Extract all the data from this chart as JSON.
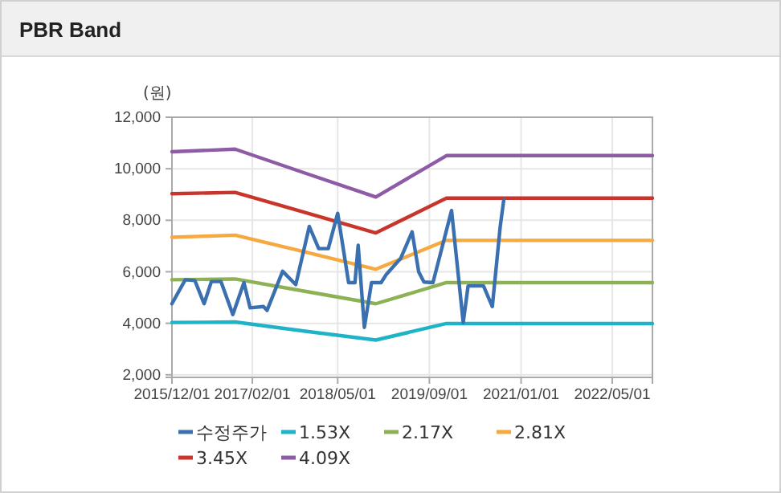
{
  "chart_data": {
    "type": "line",
    "title": "PBR Band",
    "ylabel": "(원)",
    "xlim": [
      "2015-12-01",
      "2022-12-01"
    ],
    "ylim": [
      1900,
      12000
    ],
    "xticks": [
      {
        "value": "2015-12-01",
        "label": "2015/12/01"
      },
      {
        "value": "2017-02-01",
        "label": "2017/02/01"
      },
      {
        "value": "2018-05-01",
        "label": "2018/05/01"
      },
      {
        "value": "2019-09-01",
        "label": "2019/09/01"
      },
      {
        "value": "2021-01-01",
        "label": "2021/01/01"
      },
      {
        "value": "2022-05-01",
        "label": "2022/05/01"
      }
    ],
    "yticks": [
      {
        "value": 2000,
        "label": "2,000"
      },
      {
        "value": 4000,
        "label": "4,000"
      },
      {
        "value": 6000,
        "label": "6,000"
      },
      {
        "value": 8000,
        "label": "8,000"
      },
      {
        "value": 10000,
        "label": "10,000"
      },
      {
        "value": 12000,
        "label": "12,000"
      }
    ],
    "grid": true,
    "legend": "bottom",
    "marker": "none",
    "line_style": "solid",
    "series": [
      {
        "name": "수정주가",
        "color": "#3a6fb0",
        "x": [
          "2015-12-01",
          "2016-02-10",
          "2016-04-01",
          "2016-05-20",
          "2016-06-28",
          "2016-08-18",
          "2016-10-20",
          "2016-12-18",
          "2017-01-20",
          "2017-04-01",
          "2017-04-20",
          "2017-07-12",
          "2017-09-20",
          "2017-12-01",
          "2018-01-20",
          "2018-03-12",
          "2018-05-01",
          "2018-06-28",
          "2018-08-01",
          "2018-08-18",
          "2018-09-20",
          "2018-10-28",
          "2018-12-18",
          "2019-01-15",
          "2019-04-01",
          "2019-06-01",
          "2019-07-06",
          "2019-08-03",
          "2019-09-20",
          "2019-12-28",
          "2020-02-28",
          "2020-03-25",
          "2020-05-03",
          "2020-06-15",
          "2020-08-01",
          "2020-09-12",
          "2020-10-01"
        ],
        "values": [
          4760,
          5690,
          5660,
          4760,
          5620,
          5620,
          4340,
          5580,
          4600,
          4650,
          4500,
          6020,
          5500,
          7760,
          6900,
          6900,
          8270,
          5580,
          5580,
          7030,
          3840,
          5580,
          5580,
          5900,
          6520,
          7550,
          6000,
          5600,
          5580,
          8380,
          4030,
          5450,
          5450,
          5450,
          4650,
          7760,
          8800
        ]
      },
      {
        "name": "1.53X",
        "color": "#1fb3c7",
        "x": [
          "2015-12-01",
          "2016-11-01",
          "2017-11-01",
          "2018-11-20",
          "2019-12-01",
          "2022-12-01"
        ],
        "values": [
          4030,
          4050,
          3700,
          3350,
          3990,
          3990
        ]
      },
      {
        "name": "2.17X",
        "color": "#8db255",
        "x": [
          "2015-12-01",
          "2016-11-01",
          "2017-11-01",
          "2018-11-20",
          "2019-12-01",
          "2022-12-01"
        ],
        "values": [
          5690,
          5720,
          5250,
          4760,
          5580,
          5580
        ]
      },
      {
        "name": "2.81X",
        "color": "#f5a940",
        "x": [
          "2015-12-01",
          "2016-11-01",
          "2017-11-01",
          "2018-11-20",
          "2019-12-01",
          "2022-12-01"
        ],
        "values": [
          7340,
          7420,
          6780,
          6100,
          7220,
          7220
        ]
      },
      {
        "name": "3.45X",
        "color": "#c8352b",
        "x": [
          "2015-12-01",
          "2016-11-01",
          "2017-11-01",
          "2018-11-20",
          "2019-12-01",
          "2022-12-01"
        ],
        "values": [
          9030,
          9080,
          8320,
          7510,
          8860,
          8860
        ]
      },
      {
        "name": "4.09X",
        "color": "#8e5ba6",
        "x": [
          "2015-12-01",
          "2016-11-01",
          "2017-11-01",
          "2018-11-20",
          "2019-12-01",
          "2022-12-01"
        ],
        "values": [
          10660,
          10760,
          9850,
          8900,
          10510,
          10510
        ]
      }
    ]
  }
}
